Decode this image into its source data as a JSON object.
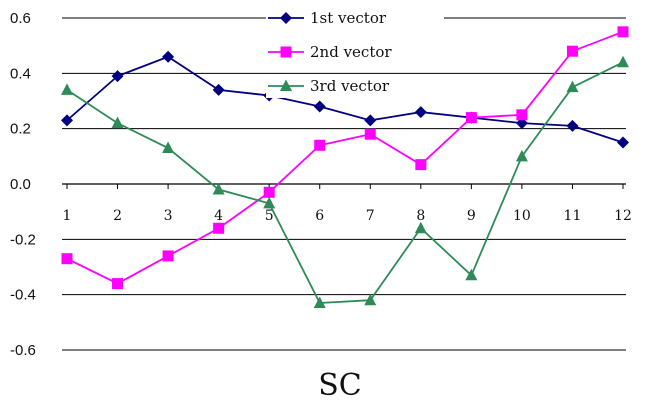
{
  "chart_data": {
    "type": "line",
    "xlabel": "SC",
    "ylabel": "",
    "categories": [
      "1",
      "2",
      "3",
      "4",
      "5",
      "6",
      "7",
      "8",
      "9",
      "10",
      "11",
      "12"
    ],
    "ylim": [
      -0.6,
      0.6
    ],
    "y_ticks": [
      "0.6",
      "0.4",
      "0.2",
      "0.0",
      "-0.2",
      "-0.4",
      "-0.6"
    ],
    "y_tick_values": [
      0.6,
      0.4,
      0.2,
      0.0,
      -0.2,
      -0.4,
      -0.6
    ],
    "grid": true,
    "legend_position": "top-right",
    "series": [
      {
        "name": "1st vector",
        "color": "#000080",
        "marker": "diamond",
        "values": [
          0.23,
          0.39,
          0.46,
          0.34,
          0.32,
          0.28,
          0.23,
          0.26,
          0.24,
          0.22,
          0.21,
          0.15
        ]
      },
      {
        "name": "2nd vector",
        "color": "#ff00ff",
        "marker": "square",
        "values": [
          -0.27,
          -0.36,
          -0.26,
          -0.16,
          -0.03,
          0.14,
          0.18,
          0.07,
          0.24,
          0.25,
          0.48,
          0.55
        ]
      },
      {
        "name": "3rd vector",
        "color": "#2e8b57",
        "marker": "triangle",
        "values": [
          0.34,
          0.22,
          0.13,
          -0.02,
          -0.07,
          -0.43,
          -0.42,
          -0.16,
          -0.33,
          0.1,
          0.35,
          0.44
        ]
      }
    ]
  }
}
